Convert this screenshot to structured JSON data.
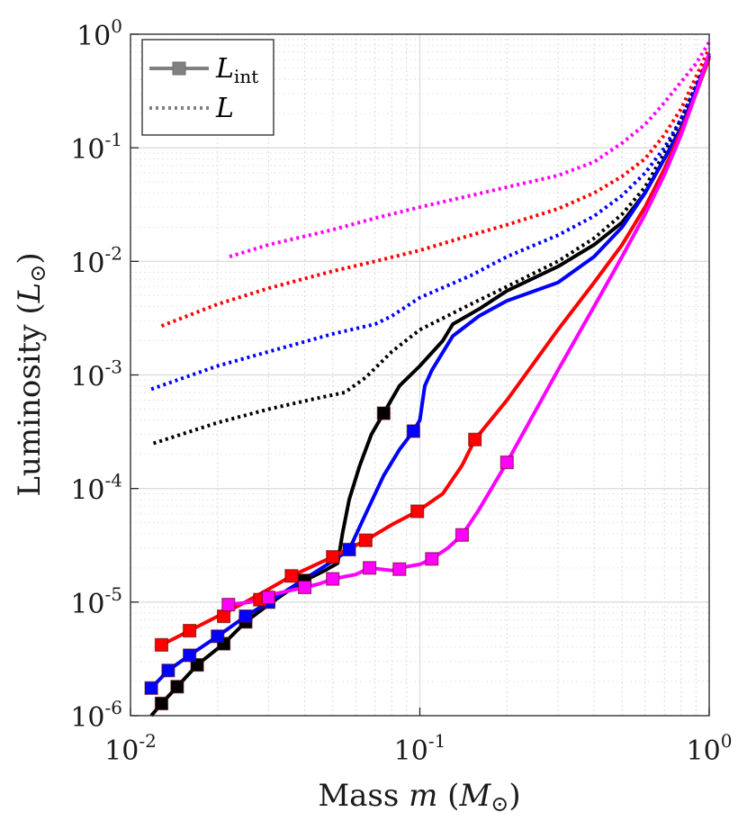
{
  "chart_data": {
    "type": "line",
    "scale": {
      "x": "log",
      "y": "log"
    },
    "xlim": [
      0.01,
      1
    ],
    "ylim": [
      1e-06,
      1
    ],
    "xlabel": {
      "prefix": "Mass ",
      "var": "m",
      "open": " (",
      "sym": "M",
      "sub": "⊙",
      "close": ")"
    },
    "ylabel": {
      "prefix": "Luminosity ",
      "open": "(",
      "sym": "L",
      "sub": "⊙",
      "close": ")"
    },
    "xticks": [
      {
        "value": 0.01,
        "base": "10",
        "exp": "-2"
      },
      {
        "value": 0.1,
        "base": "10",
        "exp": "-1"
      },
      {
        "value": 1,
        "base": "10",
        "exp": "0"
      }
    ],
    "yticks": [
      {
        "value": 1e-06,
        "base": "10",
        "exp": "-6"
      },
      {
        "value": 1e-05,
        "base": "10",
        "exp": "-5"
      },
      {
        "value": 0.0001,
        "base": "10",
        "exp": "-4"
      },
      {
        "value": 0.001,
        "base": "10",
        "exp": "-3"
      },
      {
        "value": 0.01,
        "base": "10",
        "exp": "-2"
      },
      {
        "value": 0.1,
        "base": "10",
        "exp": "-1"
      },
      {
        "value": 1,
        "base": "10",
        "exp": "0"
      }
    ],
    "grid": true,
    "legend": {
      "position": "top-left",
      "entries": [
        {
          "label": "L",
          "sub": "int",
          "style": "solid-square",
          "color": "#808080"
        },
        {
          "label": "L",
          "sub": "",
          "style": "dotted",
          "color": "#808080"
        }
      ]
    },
    "series": [
      {
        "name": "black",
        "color": "#000000",
        "dotted": [
          [
            0.012,
            0.00025
          ],
          [
            0.02,
            0.00038
          ],
          [
            0.03,
            0.0005
          ],
          [
            0.045,
            0.00063
          ],
          [
            0.055,
            0.0007
          ],
          [
            0.065,
            0.00095
          ],
          [
            0.08,
            0.0016
          ],
          [
            0.1,
            0.0025
          ],
          [
            0.15,
            0.0042
          ],
          [
            0.2,
            0.006
          ],
          [
            0.3,
            0.01
          ],
          [
            0.4,
            0.016
          ],
          [
            0.5,
            0.026
          ],
          [
            0.6,
            0.045
          ],
          [
            0.7,
            0.09
          ],
          [
            0.8,
            0.18
          ],
          [
            0.9,
            0.35
          ],
          [
            1.0,
            0.65
          ]
        ],
        "solid": [
          [
            0.0118,
            1e-06
          ],
          [
            0.0128,
            1.28e-06
          ],
          [
            0.0145,
            1.8e-06
          ],
          [
            0.017,
            2.8e-06
          ],
          [
            0.021,
            4.3e-06
          ],
          [
            0.025,
            6.7e-06
          ],
          [
            0.03,
            9.5e-06
          ],
          [
            0.035,
            1.25e-05
          ],
          [
            0.04,
            1.55e-05
          ],
          [
            0.047,
            1.9e-05
          ],
          [
            0.052,
            2.2e-05
          ],
          [
            0.054,
            4e-05
          ],
          [
            0.057,
            8e-05
          ],
          [
            0.062,
            0.00016
          ],
          [
            0.068,
            0.0003
          ],
          [
            0.075,
            0.00046
          ],
          [
            0.085,
            0.0008
          ],
          [
            0.1,
            0.0012
          ],
          [
            0.12,
            0.002
          ],
          [
            0.13,
            0.0028
          ],
          [
            0.16,
            0.0038
          ],
          [
            0.2,
            0.0055
          ],
          [
            0.3,
            0.009
          ],
          [
            0.4,
            0.014
          ],
          [
            0.5,
            0.022
          ],
          [
            0.6,
            0.04
          ],
          [
            0.7,
            0.08
          ],
          [
            0.8,
            0.15
          ],
          [
            0.9,
            0.32
          ],
          [
            1.0,
            0.65
          ]
        ],
        "markers": [
          [
            0.0128,
            1.28e-06
          ],
          [
            0.0145,
            1.8e-06
          ],
          [
            0.017,
            2.8e-06
          ],
          [
            0.021,
            4.3e-06
          ],
          [
            0.025,
            6.7e-06
          ],
          [
            0.03,
            1.05e-05
          ],
          [
            0.04,
            1.55e-05
          ],
          [
            0.075,
            0.00046
          ]
        ]
      },
      {
        "name": "blue",
        "color": "#0000ff",
        "dotted": [
          [
            0.0118,
            0.00075
          ],
          [
            0.02,
            0.0012
          ],
          [
            0.03,
            0.0016
          ],
          [
            0.05,
            0.0023
          ],
          [
            0.07,
            0.0028
          ],
          [
            0.08,
            0.0033
          ],
          [
            0.1,
            0.0048
          ],
          [
            0.15,
            0.0075
          ],
          [
            0.2,
            0.011
          ],
          [
            0.3,
            0.017
          ],
          [
            0.4,
            0.025
          ],
          [
            0.5,
            0.038
          ],
          [
            0.6,
            0.06
          ],
          [
            0.7,
            0.1
          ],
          [
            0.8,
            0.18
          ],
          [
            0.9,
            0.35
          ],
          [
            1.0,
            0.65
          ]
        ],
        "solid": [
          [
            0.0118,
            1.75e-06
          ],
          [
            0.0135,
            2.5e-06
          ],
          [
            0.016,
            3.4e-06
          ],
          [
            0.02,
            5e-06
          ],
          [
            0.025,
            7.5e-06
          ],
          [
            0.03,
            1e-05
          ],
          [
            0.04,
            1.6e-05
          ],
          [
            0.05,
            2.3e-05
          ],
          [
            0.057,
            2.9e-05
          ],
          [
            0.065,
            6e-05
          ],
          [
            0.075,
            0.00013
          ],
          [
            0.085,
            0.00022
          ],
          [
            0.095,
            0.00032
          ],
          [
            0.1,
            0.0004
          ],
          [
            0.104,
            0.0008
          ],
          [
            0.11,
            0.0011
          ],
          [
            0.13,
            0.0022
          ],
          [
            0.16,
            0.0033
          ],
          [
            0.2,
            0.0045
          ],
          [
            0.3,
            0.0065
          ],
          [
            0.4,
            0.011
          ],
          [
            0.5,
            0.02
          ],
          [
            0.6,
            0.04
          ],
          [
            0.7,
            0.08
          ],
          [
            0.8,
            0.15
          ],
          [
            0.9,
            0.32
          ],
          [
            1.0,
            0.65
          ]
        ],
        "markers": [
          [
            0.0118,
            1.75e-06
          ],
          [
            0.0135,
            2.5e-06
          ],
          [
            0.016,
            3.4e-06
          ],
          [
            0.02,
            5e-06
          ],
          [
            0.025,
            7.5e-06
          ],
          [
            0.03,
            1e-05
          ],
          [
            0.057,
            2.9e-05
          ],
          [
            0.095,
            0.00032
          ]
        ]
      },
      {
        "name": "red",
        "color": "#ff0000",
        "dotted": [
          [
            0.0128,
            0.0027
          ],
          [
            0.02,
            0.0042
          ],
          [
            0.03,
            0.0058
          ],
          [
            0.05,
            0.0082
          ],
          [
            0.07,
            0.01
          ],
          [
            0.1,
            0.0125
          ],
          [
            0.15,
            0.017
          ],
          [
            0.2,
            0.021
          ],
          [
            0.3,
            0.029
          ],
          [
            0.4,
            0.04
          ],
          [
            0.5,
            0.056
          ],
          [
            0.6,
            0.08
          ],
          [
            0.7,
            0.13
          ],
          [
            0.8,
            0.22
          ],
          [
            0.9,
            0.42
          ],
          [
            1.0,
            0.75
          ]
        ],
        "solid": [
          [
            0.0128,
            4.2e-06
          ],
          [
            0.016,
            5.6e-06
          ],
          [
            0.02,
            7.5e-06
          ],
          [
            0.025,
            1e-05
          ],
          [
            0.03,
            1.3e-05
          ],
          [
            0.036,
            1.7e-05
          ],
          [
            0.05,
            2.5e-05
          ],
          [
            0.065,
            3.5e-05
          ],
          [
            0.08,
            4.8e-05
          ],
          [
            0.098,
            6.3e-05
          ],
          [
            0.12,
            9e-05
          ],
          [
            0.14,
            0.00016
          ],
          [
            0.155,
            0.00027
          ],
          [
            0.2,
            0.0006
          ],
          [
            0.3,
            0.0025
          ],
          [
            0.4,
            0.0065
          ],
          [
            0.5,
            0.014
          ],
          [
            0.6,
            0.03
          ],
          [
            0.7,
            0.065
          ],
          [
            0.8,
            0.14
          ],
          [
            0.9,
            0.3
          ],
          [
            1.0,
            0.62
          ]
        ],
        "markers": [
          [
            0.0128,
            4.2e-06
          ],
          [
            0.016,
            5.6e-06
          ],
          [
            0.021,
            7.5e-06
          ],
          [
            0.028,
            1.05e-05
          ],
          [
            0.036,
            1.7e-05
          ],
          [
            0.05,
            2.5e-05
          ],
          [
            0.065,
            3.5e-05
          ],
          [
            0.098,
            6.3e-05
          ],
          [
            0.155,
            0.00027
          ]
        ]
      },
      {
        "name": "magenta",
        "color": "#ff00ff",
        "dotted": [
          [
            0.022,
            0.011
          ],
          [
            0.03,
            0.014
          ],
          [
            0.05,
            0.019
          ],
          [
            0.07,
            0.024
          ],
          [
            0.1,
            0.03
          ],
          [
            0.15,
            0.038
          ],
          [
            0.2,
            0.045
          ],
          [
            0.3,
            0.057
          ],
          [
            0.4,
            0.075
          ],
          [
            0.5,
            0.11
          ],
          [
            0.6,
            0.16
          ],
          [
            0.7,
            0.25
          ],
          [
            0.8,
            0.38
          ],
          [
            0.9,
            0.55
          ],
          [
            1.0,
            0.85
          ]
        ],
        "solid": [
          [
            0.0218,
            9.5e-06
          ],
          [
            0.026,
            1e-05
          ],
          [
            0.03,
            1.15e-05
          ],
          [
            0.035,
            1.25e-05
          ],
          [
            0.04,
            1.35e-05
          ],
          [
            0.045,
            1.45e-05
          ],
          [
            0.05,
            1.6e-05
          ],
          [
            0.06,
            1.75e-05
          ],
          [
            0.067,
            2e-05
          ],
          [
            0.08,
            1.9e-05
          ],
          [
            0.09,
            2.05e-05
          ],
          [
            0.1,
            2.15e-05
          ],
          [
            0.11,
            2.4e-05
          ],
          [
            0.125,
            3e-05
          ],
          [
            0.14,
            3.9e-05
          ],
          [
            0.16,
            6.5e-05
          ],
          [
            0.2,
            0.00017
          ],
          [
            0.3,
            0.0011
          ],
          [
            0.4,
            0.004
          ],
          [
            0.5,
            0.011
          ],
          [
            0.6,
            0.026
          ],
          [
            0.7,
            0.058
          ],
          [
            0.8,
            0.13
          ],
          [
            0.9,
            0.3
          ],
          [
            1.0,
            0.68
          ]
        ],
        "markers": [
          [
            0.0218,
            9.5e-06
          ],
          [
            0.03,
            1.1e-05
          ],
          [
            0.04,
            1.35e-05
          ],
          [
            0.05,
            1.6e-05
          ],
          [
            0.067,
            2e-05
          ],
          [
            0.085,
            1.95e-05
          ],
          [
            0.11,
            2.4e-05
          ],
          [
            0.14,
            3.9e-05
          ],
          [
            0.2,
            0.00017
          ]
        ]
      }
    ]
  }
}
